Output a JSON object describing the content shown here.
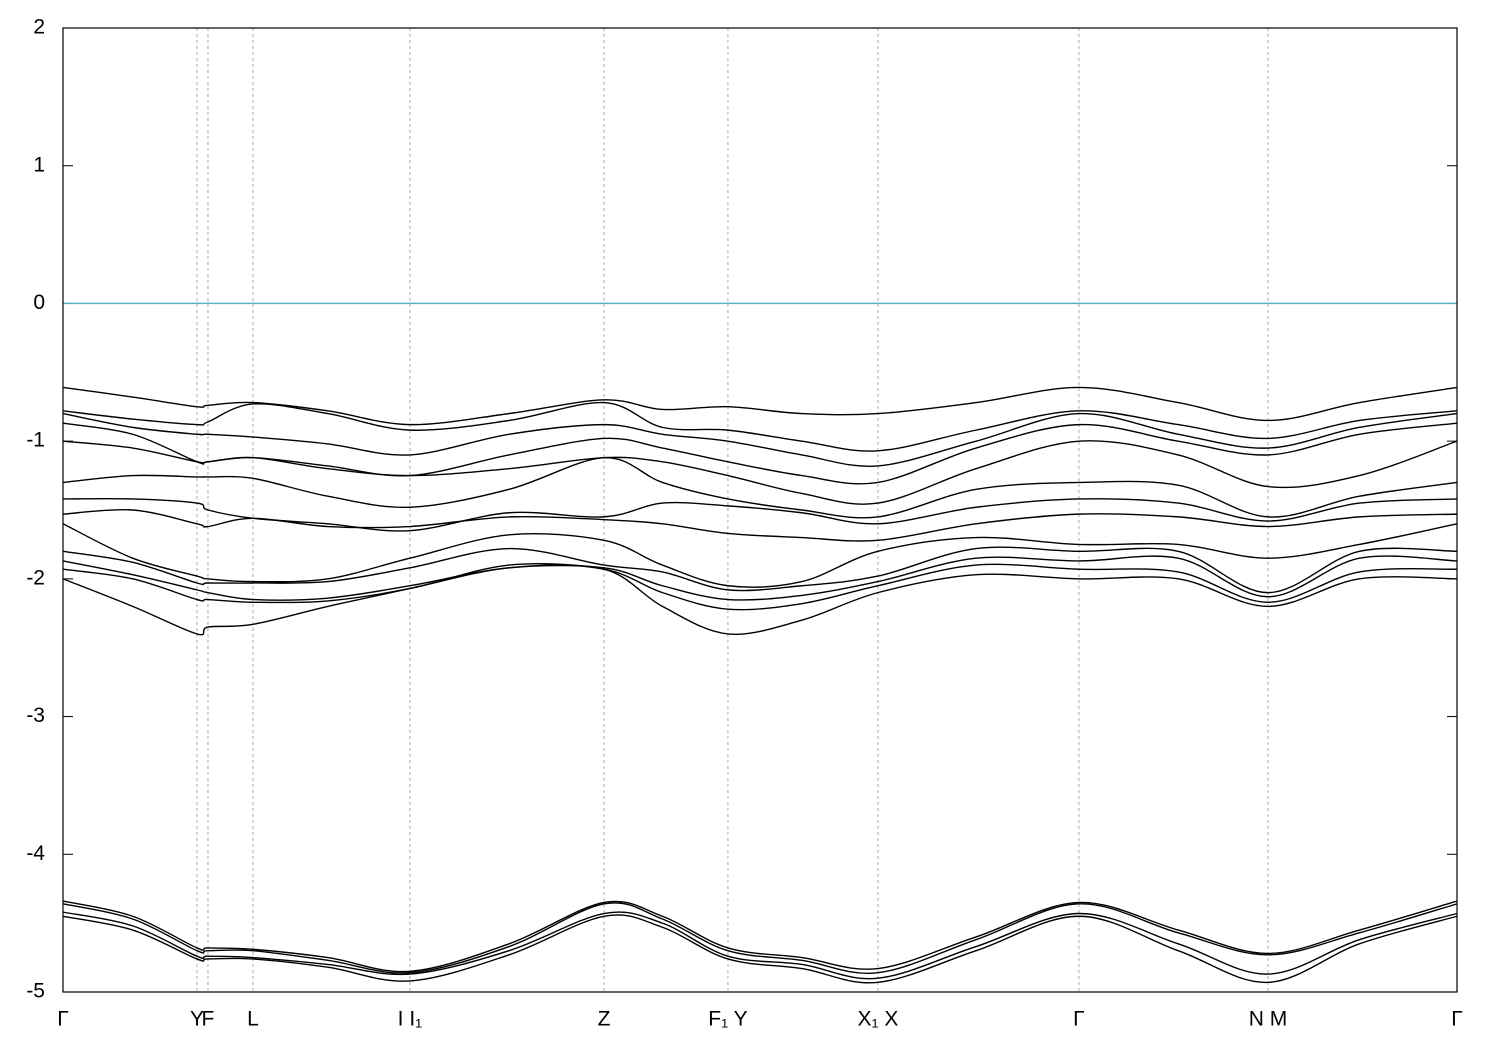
{
  "chart_data": {
    "type": "line",
    "xlim": [
      0,
      1
    ],
    "xticks": [
      {
        "value": 0,
        "label": "Γ"
      },
      {
        "value": 0.0961,
        "label": "Y"
      },
      {
        "value": 0.104,
        "label": "F"
      },
      {
        "value": 0.1363,
        "label": "L"
      },
      {
        "value": 0.2489,
        "label": "I   I₁"
      },
      {
        "value": 0.3881,
        "label": "Z"
      },
      {
        "value": 0.477,
        "label": "F₁ Y"
      },
      {
        "value": 0.5846,
        "label": "X₁ X"
      },
      {
        "value": 0.7288,
        "label": "Γ"
      },
      {
        "value": 0.8644,
        "label": "N  M"
      },
      {
        "value": 1,
        "label": "Γ"
      }
    ],
    "ylim": [
      -5,
      2
    ],
    "yticks": [
      -5,
      -4,
      -3,
      -2,
      -1,
      0,
      1,
      2
    ],
    "grid": true,
    "reference_line": {
      "y": 0,
      "color": "#5ab4c8"
    },
    "x": [
      0,
      0.05,
      0.0961,
      0.104,
      0.1363,
      0.19,
      0.2489,
      0.32,
      0.3881,
      0.43,
      0.477,
      0.53,
      0.5846,
      0.655,
      0.7288,
      0.8,
      0.8644,
      0.93,
      1
    ],
    "series": [
      {
        "color": "#000000",
        "values": [
          -4.34,
          -4.45,
          -4.68,
          -4.68,
          -4.69,
          -4.75,
          -4.85,
          -4.65,
          -4.35,
          -4.45,
          -4.68,
          -4.75,
          -4.83,
          -4.6,
          -4.35,
          -4.55,
          -4.72,
          -4.55,
          -4.34
        ]
      },
      {
        "color": "#000000",
        "values": [
          -4.36,
          -4.47,
          -4.7,
          -4.7,
          -4.7,
          -4.77,
          -4.86,
          -4.67,
          -4.36,
          -4.47,
          -4.7,
          -4.77,
          -4.86,
          -4.62,
          -4.36,
          -4.57,
          -4.73,
          -4.57,
          -4.36
        ]
      },
      {
        "color": "#000000",
        "values": [
          -4.42,
          -4.52,
          -4.74,
          -4.74,
          -4.75,
          -4.8,
          -4.87,
          -4.7,
          -4.43,
          -4.5,
          -4.74,
          -4.8,
          -4.9,
          -4.67,
          -4.43,
          -4.65,
          -4.87,
          -4.62,
          -4.43
        ]
      },
      {
        "color": "#000000",
        "values": [
          -4.45,
          -4.55,
          -4.76,
          -4.76,
          -4.76,
          -4.82,
          -4.92,
          -4.73,
          -4.45,
          -4.53,
          -4.76,
          -4.83,
          -4.93,
          -4.7,
          -4.45,
          -4.7,
          -4.93,
          -4.65,
          -4.45
        ]
      },
      {
        "color": "#000000",
        "values": [
          -0.61,
          -0.68,
          -0.75,
          -0.74,
          -0.72,
          -0.78,
          -0.88,
          -0.8,
          -0.7,
          -0.77,
          -0.75,
          -0.8,
          -0.8,
          -0.72,
          -0.61,
          -0.72,
          -0.85,
          -0.72,
          -0.61
        ]
      },
      {
        "color": "#000000",
        "values": [
          -0.78,
          -0.84,
          -0.88,
          -0.86,
          -0.73,
          -0.8,
          -0.92,
          -0.85,
          -0.72,
          -0.9,
          -0.92,
          -1.0,
          -1.07,
          -0.92,
          -0.78,
          -0.88,
          -0.98,
          -0.85,
          -0.78
        ]
      },
      {
        "color": "#000000",
        "values": [
          -0.8,
          -0.9,
          -0.95,
          -0.95,
          -0.97,
          -1.02,
          -1.1,
          -0.95,
          -0.88,
          -0.95,
          -1.0,
          -1.1,
          -1.18,
          -1.0,
          -0.8,
          -0.95,
          -1.05,
          -0.9,
          -0.8
        ]
      },
      {
        "color": "#000000",
        "values": [
          -0.87,
          -0.95,
          -1.15,
          -1.15,
          -1.12,
          -1.18,
          -1.25,
          -1.1,
          -0.98,
          -1.05,
          -1.15,
          -1.25,
          -1.3,
          -1.05,
          -0.88,
          -1.0,
          -1.1,
          -0.95,
          -0.87
        ]
      },
      {
        "color": "#000000",
        "values": [
          -1.0,
          -1.05,
          -1.15,
          -1.15,
          -1.12,
          -1.2,
          -1.25,
          -1.2,
          -1.12,
          -1.15,
          -1.25,
          -1.38,
          -1.45,
          -1.2,
          -1.0,
          -1.1,
          -1.33,
          -1.25,
          -1.0
        ]
      },
      {
        "color": "#000000",
        "values": [
          -1.3,
          -1.25,
          -1.26,
          -1.26,
          -1.27,
          -1.4,
          -1.48,
          -1.35,
          -1.12,
          -1.3,
          -1.42,
          -1.5,
          -1.55,
          -1.35,
          -1.3,
          -1.32,
          -1.55,
          -1.4,
          -1.3
        ]
      },
      {
        "color": "#000000",
        "values": [
          -1.42,
          -1.42,
          -1.45,
          -1.5,
          -1.56,
          -1.6,
          -1.65,
          -1.52,
          -1.55,
          -1.45,
          -1.47,
          -1.52,
          -1.6,
          -1.48,
          -1.42,
          -1.45,
          -1.58,
          -1.45,
          -1.42
        ]
      },
      {
        "color": "#000000",
        "values": [
          -1.53,
          -1.5,
          -1.6,
          -1.62,
          -1.56,
          -1.62,
          -1.62,
          -1.55,
          -1.57,
          -1.6,
          -1.67,
          -1.7,
          -1.72,
          -1.6,
          -1.53,
          -1.55,
          -1.62,
          -1.55,
          -1.53
        ]
      },
      {
        "color": "#000000",
        "values": [
          -1.6,
          -1.85,
          -1.98,
          -2.0,
          -2.02,
          -2.0,
          -1.85,
          -1.68,
          -1.72,
          -1.9,
          -2.05,
          -2.02,
          -1.8,
          -1.7,
          -1.75,
          -1.75,
          -1.85,
          -1.75,
          -1.6
        ]
      },
      {
        "color": "#000000",
        "values": [
          -1.8,
          -1.88,
          -2.03,
          -2.03,
          -2.03,
          -2.02,
          -1.92,
          -1.78,
          -1.9,
          -1.95,
          -2.08,
          -2.05,
          -1.98,
          -1.78,
          -1.8,
          -1.8,
          -2.1,
          -1.8,
          -1.8
        ]
      },
      {
        "color": "#000000",
        "values": [
          -1.87,
          -1.97,
          -2.08,
          -2.1,
          -2.15,
          -2.14,
          -2.05,
          -1.92,
          -1.92,
          -2.05,
          -2.15,
          -2.12,
          -2.02,
          -1.85,
          -1.87,
          -1.85,
          -2.13,
          -1.85,
          -1.87
        ]
      },
      {
        "color": "#000000",
        "values": [
          -1.93,
          -2.0,
          -2.15,
          -2.15,
          -2.17,
          -2.16,
          -2.07,
          -1.9,
          -1.93,
          -2.1,
          -2.22,
          -2.18,
          -2.05,
          -1.9,
          -1.93,
          -1.95,
          -2.17,
          -1.95,
          -1.93
        ]
      },
      {
        "color": "#000000",
        "values": [
          -2.0,
          -2.2,
          -2.4,
          -2.35,
          -2.33,
          -2.2,
          -2.07,
          -1.92,
          -1.93,
          -2.2,
          -2.4,
          -2.3,
          -2.1,
          -1.97,
          -2.0,
          -2.0,
          -2.2,
          -2.0,
          -2.0
        ]
      }
    ]
  }
}
